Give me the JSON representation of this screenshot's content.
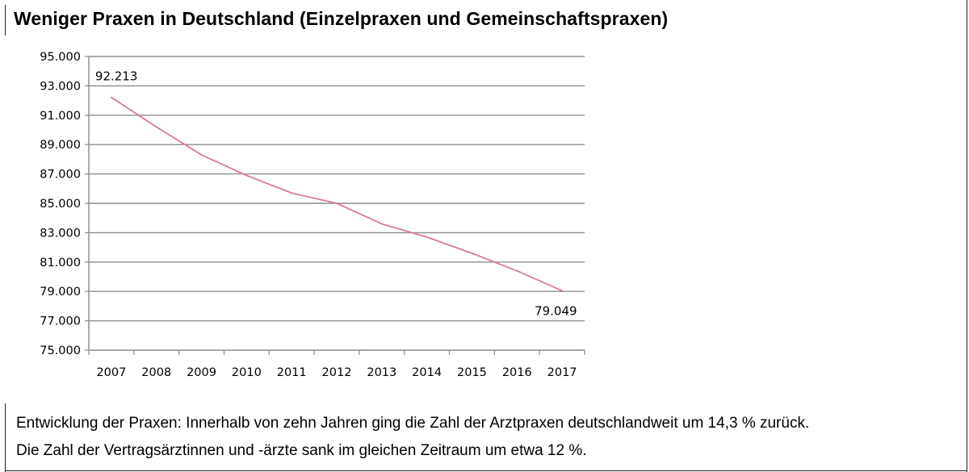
{
  "title": "Weniger Praxen in Deutschland (Einzelpraxen und Gemeinschaftspraxen)",
  "caption": {
    "line1": "Entwicklung der Praxen: Innerhalb von zehn Jahren ging die Zahl der Arztpraxen deutschlandweit um 14,3 % zurück.",
    "line2": "Die Zahl der Vertragsärztinnen und -ärzte sank im gleichen Zeitraum um etwa 12 %."
  },
  "colors": {
    "line": "#d87a9c",
    "grid": "#8c8c8c",
    "axis": "#8c8c8c"
  },
  "chart_data": {
    "type": "line",
    "title": "Weniger Praxen in Deutschland (Einzelpraxen und Gemeinschaftspraxen)",
    "xlabel": "",
    "ylabel": "",
    "categories": [
      "2007",
      "2008",
      "2009",
      "2010",
      "2011",
      "2012",
      "2013",
      "2014",
      "2015",
      "2016",
      "2017"
    ],
    "series": [
      {
        "values": [
          92213,
          90200,
          88300,
          86900,
          85700,
          85000,
          83600,
          82700,
          81600,
          80400,
          79049
        ]
      }
    ],
    "ylim": [
      75000,
      95000
    ],
    "yticks": [
      75000,
      77000,
      79000,
      81000,
      83000,
      85000,
      87000,
      89000,
      91000,
      93000,
      95000
    ],
    "ytick_labels": [
      "75.000",
      "77.000",
      "79.000",
      "81.000",
      "83.000",
      "85.000",
      "87.000",
      "89.000",
      "91.000",
      "93.000",
      "95.000"
    ],
    "data_labels": [
      {
        "index": 0,
        "text": "92.213"
      },
      {
        "index": 10,
        "text": "79.049"
      }
    ],
    "grid": true,
    "legend": "none"
  }
}
